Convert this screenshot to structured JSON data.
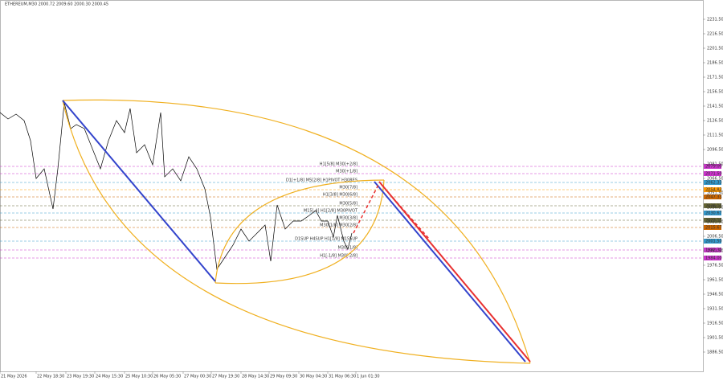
{
  "chart_data": {
    "type": "line",
    "title": "ETHEREUM,M30  2000.72 2009.60 2000.30 2000.45",
    "xlim": [
      0,
      1750
    ],
    "ylim": [
      1866.5,
      2251.5
    ],
    "xticks": [
      {
        "value": 0,
        "label": "21 May 2026"
      },
      {
        "value": 90,
        "label": "22 May 18:30"
      },
      {
        "value": 164,
        "label": "23 May 19:30"
      },
      {
        "value": 236,
        "label": "24 May 15:30"
      },
      {
        "value": 310,
        "label": "25 May 10:30"
      },
      {
        "value": 380,
        "label": "26 May 05:30"
      },
      {
        "value": 456,
        "label": "27 May 00:30"
      },
      {
        "value": 526,
        "label": "27 May 19:30"
      },
      {
        "value": 600,
        "label": "28 May 14:30"
      },
      {
        "value": 670,
        "label": "29 May 09:30"
      },
      {
        "value": 744,
        "label": "30 May 04:30"
      },
      {
        "value": 816,
        "label": "31 May 06:30"
      },
      {
        "value": 886,
        "label": "1 Jun 01:30"
      }
    ],
    "yticks": [
      {
        "value": 1886.5,
        "label": "1886.50"
      },
      {
        "value": 1901.5,
        "label": "1901.50"
      },
      {
        "value": 1916.5,
        "label": "1916.50"
      },
      {
        "value": 1931.5,
        "label": "1931.50"
      },
      {
        "value": 1946.5,
        "label": "1946.50"
      },
      {
        "value": 1961.5,
        "label": "1961.50"
      },
      {
        "value": 1976.5,
        "label": "1976.50"
      },
      {
        "value": 1991.5,
        "label": "1991.50"
      },
      {
        "value": 2006.5,
        "label": "2006.50"
      },
      {
        "value": 2021.5,
        "label": "2021.50"
      },
      {
        "value": 2036.5,
        "label": "2036.50"
      },
      {
        "value": 2051.5,
        "label": "2051.50"
      },
      {
        "value": 2066.5,
        "label": "2066.50"
      },
      {
        "value": 2081.5,
        "label": "2081.50"
      },
      {
        "value": 2096.5,
        "label": "2096.50"
      },
      {
        "value": 2111.5,
        "label": "2111.50"
      },
      {
        "value": 2126.5,
        "label": "2126.50"
      },
      {
        "value": 2141.5,
        "label": "2141.50"
      },
      {
        "value": 2156.5,
        "label": "2156.50"
      },
      {
        "value": 2171.5,
        "label": "2171.50"
      },
      {
        "value": 2186.5,
        "label": "2186.50"
      },
      {
        "value": 2201.5,
        "label": "2201.50"
      },
      {
        "value": 2216.5,
        "label": "2216.50"
      },
      {
        "value": 2231.5,
        "label": "2231.50"
      }
    ],
    "series": [
      {
        "name": "ETHEREUM,M30",
        "color": "#000000",
        "x": [
          0,
          20,
          40,
          60,
          76,
          90,
          110,
          132,
          144,
          160,
          176,
          190,
          210,
          230,
          250,
          270,
          290,
          310,
          324,
          340,
          360,
          380,
          400,
          410,
          430,
          450,
          470,
          490,
          510,
          524,
          540,
          560,
          580,
          600,
          620,
          640,
          660,
          674,
          690,
          710,
          730,
          750,
          770,
          786,
          800,
          816,
          830,
          840,
          856,
          866,
          876
        ],
        "values": [
          2134.83,
          2128.17,
          2133.17,
          2126.5,
          2105.67,
          2066.5,
          2076.5,
          2034.83,
          2076.5,
          2144.83,
          2118.17,
          2122.33,
          2118.17,
          2097.33,
          2076.5,
          2105.67,
          2126.5,
          2114,
          2139,
          2093.17,
          2101.5,
          2080.67,
          2134.83,
          2068.17,
          2076.5,
          2064,
          2089,
          2076.5,
          2055.67,
          2026.5,
          1972.33,
          1984.83,
          1997.33,
          2014,
          2001.5,
          2009.83,
          2018.17,
          1980.67,
          2039,
          2014,
          2022.33,
          2022.33,
          2028.17,
          2033.17,
          2022.33,
          2022.33,
          2005.67,
          2028.17,
          2001.5,
          1993.17,
          2009.83
        ]
      }
    ],
    "levels": [
      {
        "name": "H1[5/8] M30[+2/8]",
        "color": "#cc33cc",
        "value": 2079.0,
        "label": "2079.00"
      },
      {
        "name": "M30[+1/8]",
        "color": "#cc33cc",
        "value": 2071.5,
        "label": "2071.50"
      },
      {
        "name": "D1[+1/8] M5[2/8] H1PIVOT H30RES",
        "color": "#3399cc",
        "value": 2062.33,
        "label": "2062.33"
      },
      {
        "name": "M30[7/8]",
        "color": "#ff9900",
        "value": 2054.83,
        "label": "2054.83"
      },
      {
        "name": "H1[3/8] M30[6/8]",
        "color": "#cc6600",
        "value": 2047.33,
        "label": "2047.33"
      },
      {
        "name": "M30[5/8]",
        "color": "#666633",
        "value": 2038.17,
        "label": "2038.17"
      },
      {
        "name": "M15[-4] H1[2/8] M30PIVOT",
        "color": "#3399cc",
        "value": 2030.67,
        "label": "2030.67"
      },
      {
        "name": "M30[3/8]",
        "color": "#666633",
        "value": 2023.17,
        "label": "2023.17"
      },
      {
        "name": "M30[1/8] M30[2/8]",
        "color": "#cc6600",
        "value": 2015.67,
        "label": "2015.67"
      },
      {
        "name": "D1SUP H4SUP H1[1/8] M15SUP",
        "color": "#3399cc",
        "value": 2001.5,
        "label": "2001.50"
      },
      {
        "name": "M30[-1/8]",
        "color": "#cc33cc",
        "value": 1992.33,
        "label": "1992.33"
      },
      {
        "name": "H1[-1/8] M30[-2/8]",
        "color": "#cc33cc",
        "value": 1984.0,
        "label": "1984.00"
      }
    ]
  }
}
